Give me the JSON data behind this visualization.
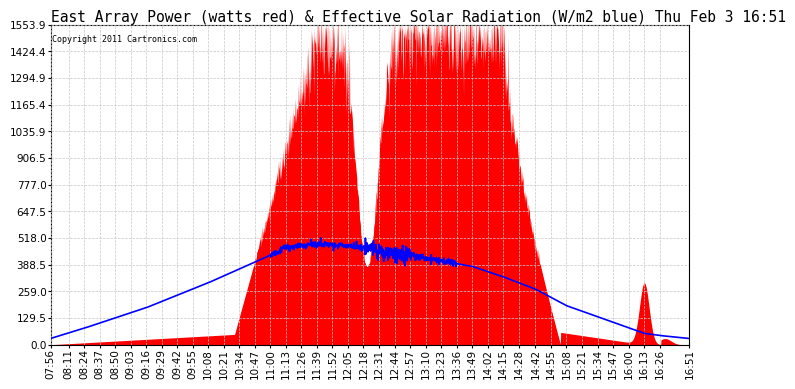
{
  "title": "East Array Power (watts red) & Effective Solar Radiation (W/m2 blue) Thu Feb 3 16:51",
  "copyright": "Copyright 2011 Cartronics.com",
  "yticks": [
    0.0,
    129.5,
    259.0,
    388.5,
    518.0,
    647.5,
    777.0,
    906.5,
    1035.9,
    1165.4,
    1294.9,
    1424.4,
    1553.9
  ],
  "ymax": 1553.9,
  "xtick_labels": [
    "07:56",
    "08:11",
    "08:24",
    "08:37",
    "08:50",
    "09:03",
    "09:16",
    "09:29",
    "09:42",
    "09:55",
    "10:08",
    "10:21",
    "10:34",
    "10:47",
    "11:00",
    "11:13",
    "11:26",
    "11:39",
    "11:52",
    "12:05",
    "12:18",
    "12:31",
    "12:44",
    "12:57",
    "13:10",
    "13:23",
    "13:36",
    "13:49",
    "14:02",
    "14:15",
    "14:28",
    "14:42",
    "14:55",
    "15:08",
    "15:21",
    "15:34",
    "15:47",
    "16:00",
    "16:13",
    "16:26",
    "16:51"
  ],
  "background_color": "#ffffff",
  "grid_color": "#c8c8c8",
  "red_color": "#ff0000",
  "blue_color": "#0000ff",
  "title_fontsize": 10.5,
  "tick_fontsize": 7.5
}
